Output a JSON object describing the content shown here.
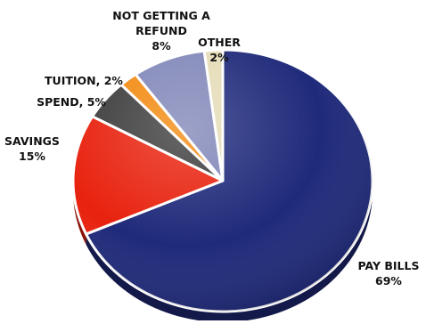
{
  "chart_data": {
    "type": "pie",
    "title": "",
    "slices": [
      {
        "label": [
          "PAY BILLS"
        ],
        "value_label": "69%",
        "value": 69,
        "color": "#1f2a7a"
      },
      {
        "label": [
          "SAVINGS"
        ],
        "value_label": "15%",
        "value": 15,
        "color": "#e8220e"
      },
      {
        "label": [
          "SPEND,"
        ],
        "value_label": "5%",
        "value": 5,
        "color": "#3c3c3c"
      },
      {
        "label": [
          "TUITION,"
        ],
        "value_label": "2%",
        "value": 2,
        "color": "#f28a10"
      },
      {
        "label": [
          "NOT GETTING A",
          "REFUND"
        ],
        "value_label": "8%",
        "value": 8,
        "color": "#8086b8"
      },
      {
        "label": [
          "OTHER"
        ],
        "value_label": "2%",
        "value": 2,
        "color": "#e4dbb6"
      }
    ]
  }
}
